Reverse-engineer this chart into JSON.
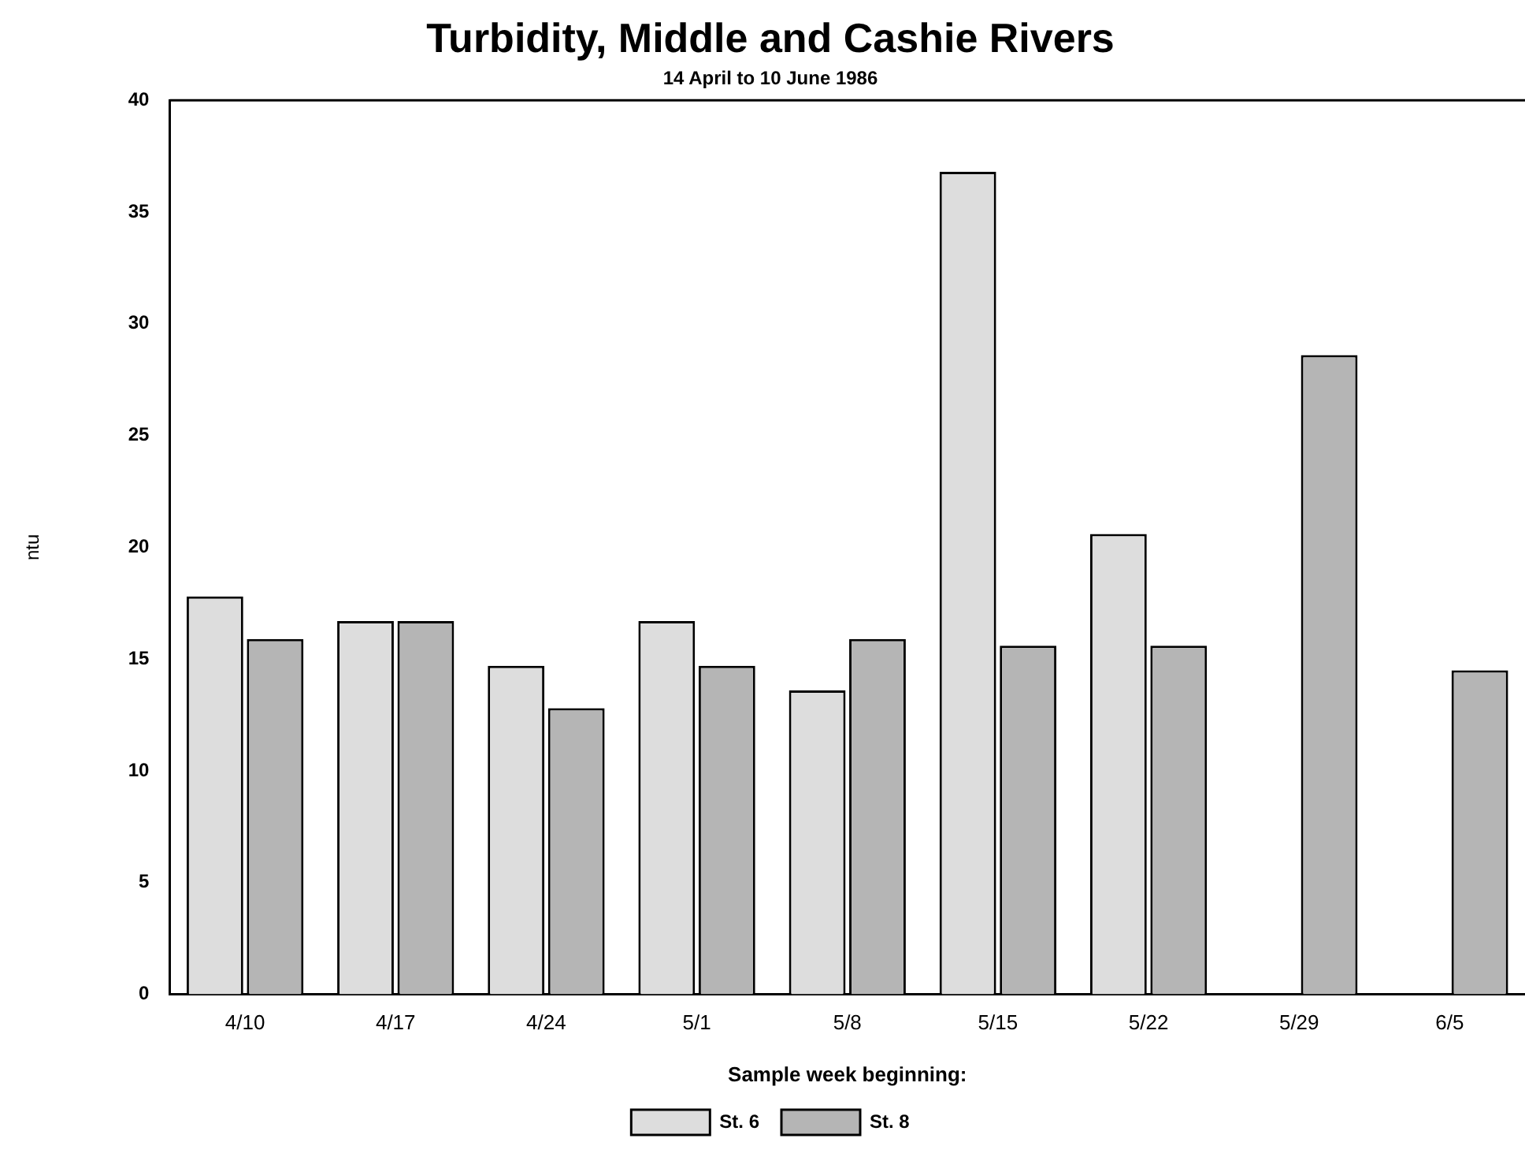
{
  "chart_data": {
    "type": "bar",
    "title": "Turbidity, Middle and Cashie Rivers",
    "subtitle": "14 April to 10 June 1986",
    "xlabel": "Sample week beginning:",
    "ylabel": "ntu",
    "categories": [
      "4/10",
      "4/17",
      "4/24",
      "5/1",
      "5/8",
      "5/15",
      "5/22",
      "5/29",
      "6/5"
    ],
    "series": [
      {
        "name": "St. 6",
        "color": "#dddddd",
        "values": [
          17.8,
          16.7,
          14.7,
          16.7,
          13.6,
          36.8,
          20.6,
          null,
          null
        ]
      },
      {
        "name": "St. 8",
        "color": "#b5b5b5",
        "values": [
          15.9,
          16.7,
          12.8,
          14.7,
          15.9,
          15.6,
          15.6,
          28.6,
          14.5
        ]
      }
    ],
    "ylim": [
      0,
      40
    ],
    "yticks": [
      0,
      5,
      10,
      15,
      20,
      25,
      30,
      35,
      40
    ],
    "grid": false,
    "legend": "bottom"
  }
}
